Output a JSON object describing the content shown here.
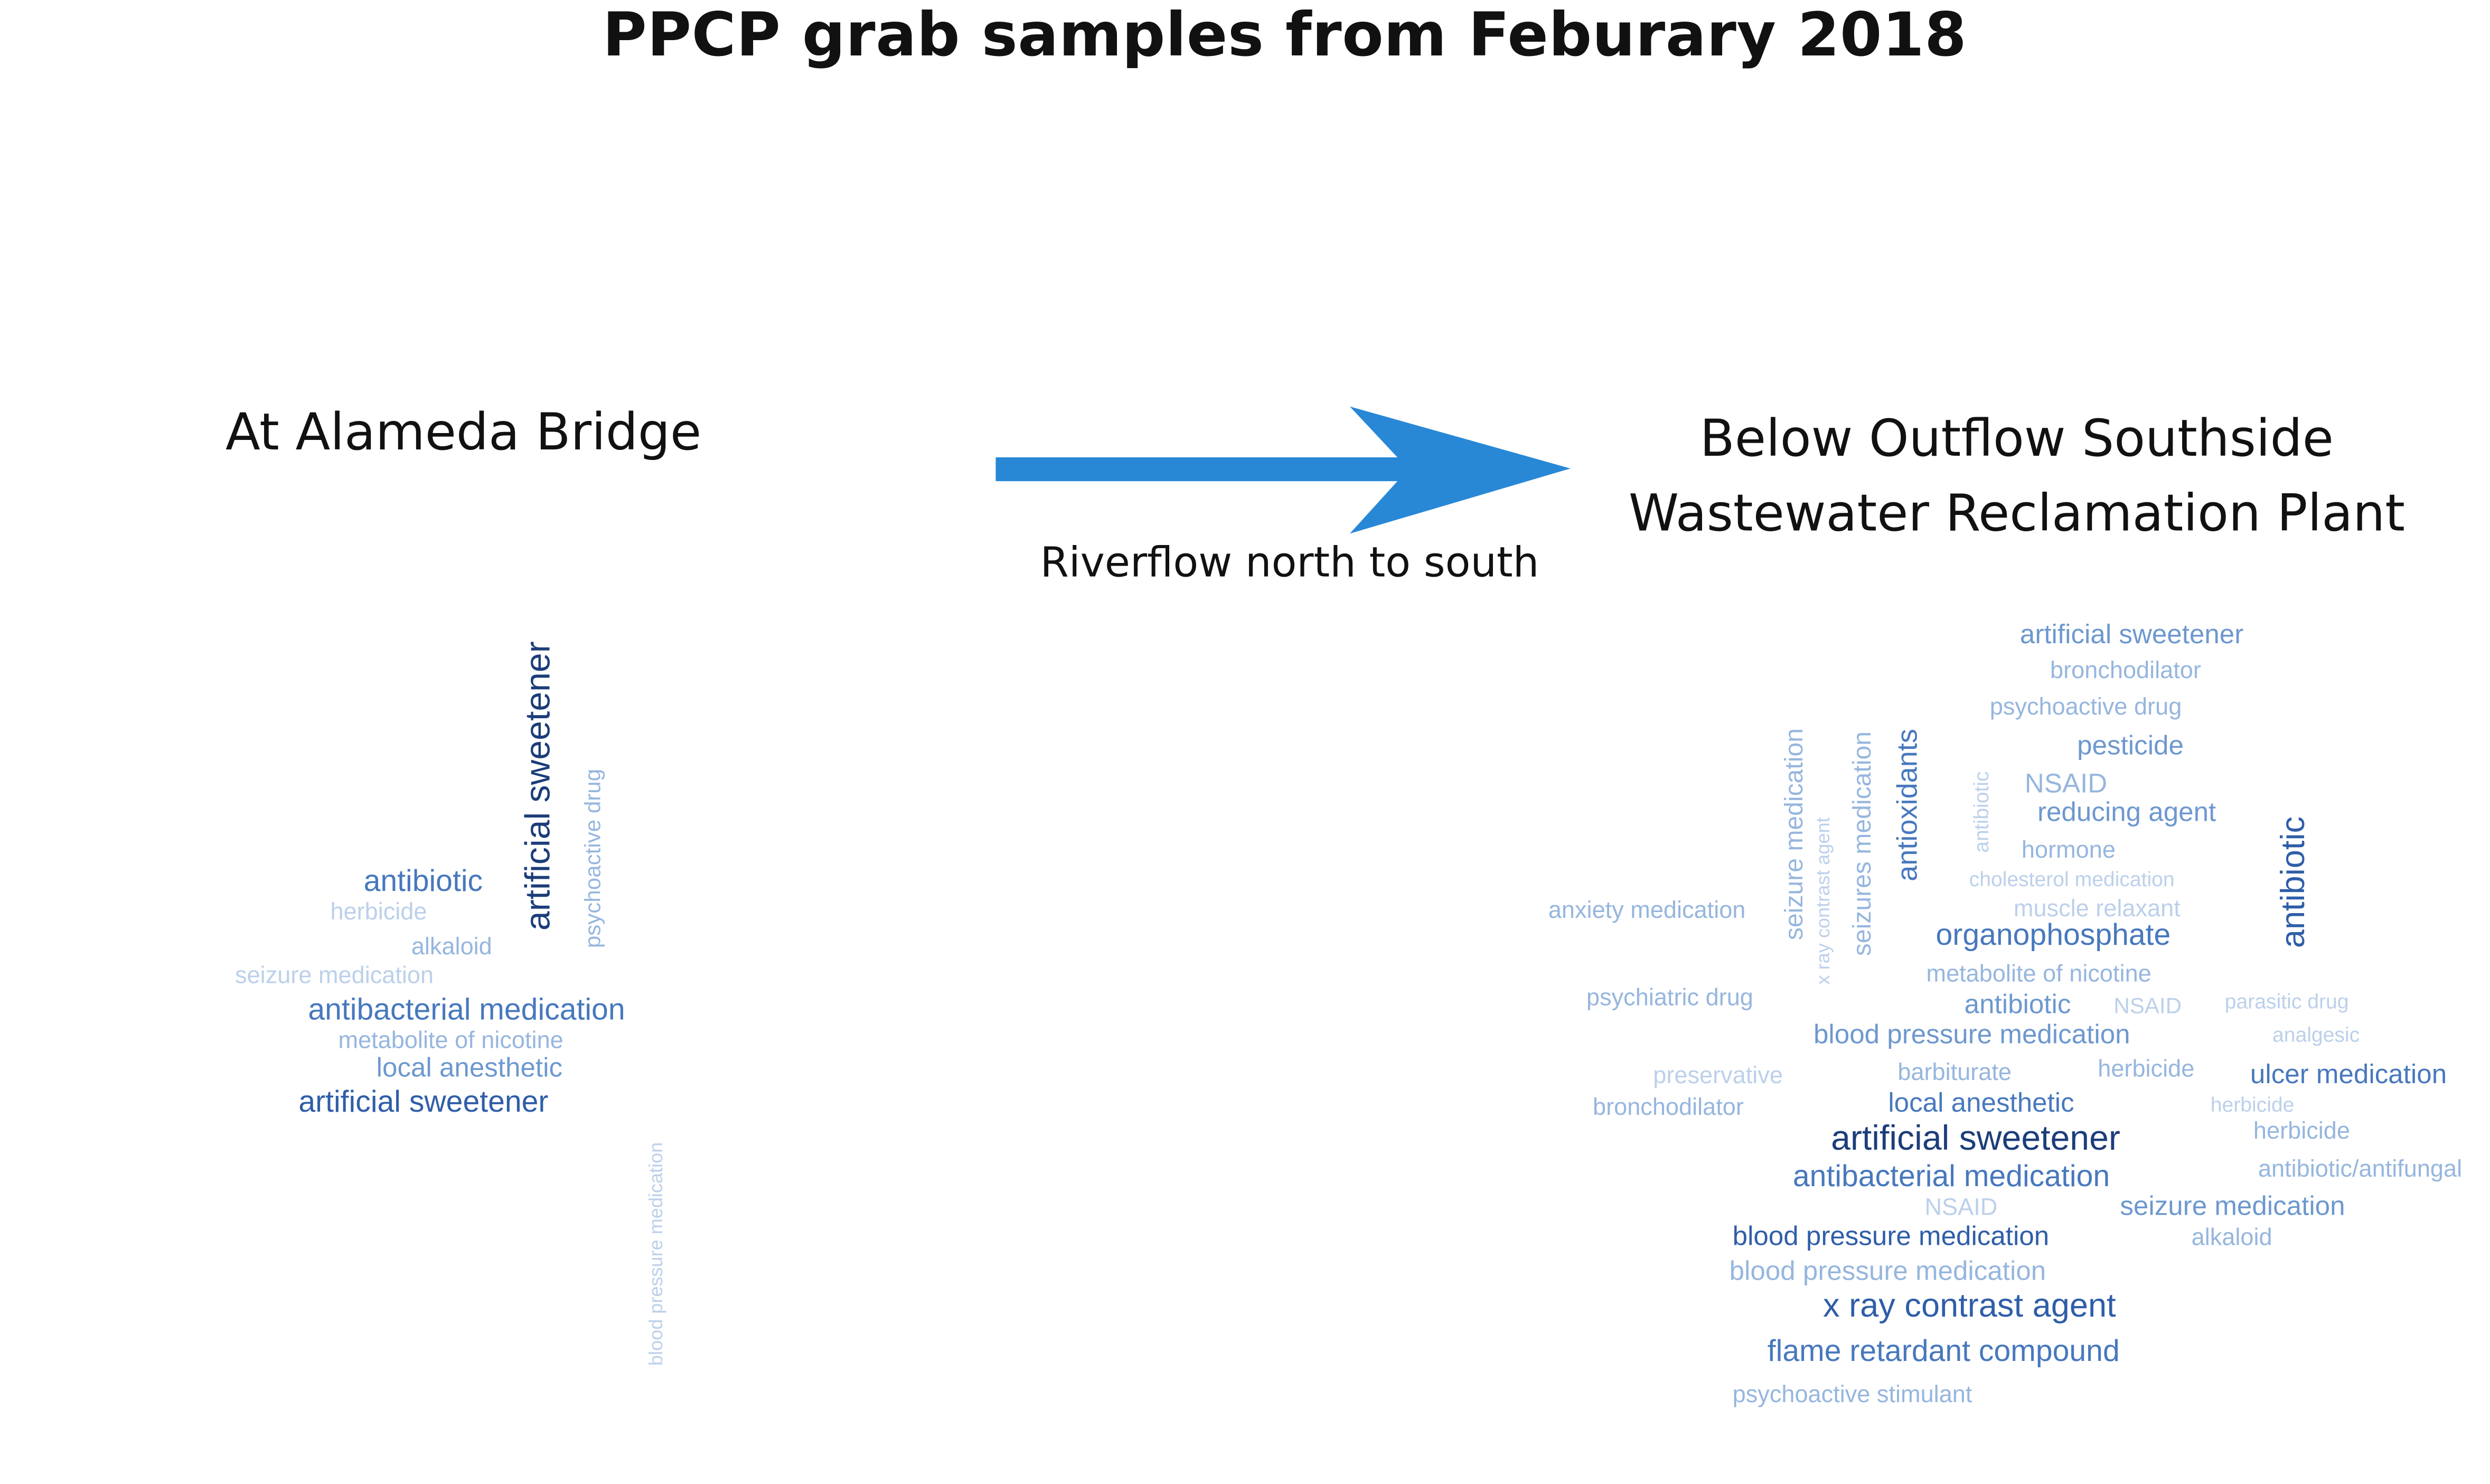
{
  "title": "PPCP grab samples from Feburary 2018",
  "upstream_site": {
    "label": "At Alameda Bridge"
  },
  "downstream_site": {
    "label_line1": "Below Outflow Southside",
    "label_line2": "Wastewater Reclamation Plant"
  },
  "flow": {
    "label": "Riverflow north to south",
    "arrow_color": "#2888d6"
  },
  "colors": {
    "darkest": "#1c3d7a",
    "dark": "#2f5ea8",
    "medium": "#4778bd",
    "light": "#6d98cf",
    "lighter": "#96b6de",
    "lightest": "#bcd0ea"
  },
  "wordcloud_upstream": [
    "artificial sweetener",
    "psychoactive drug",
    "antibiotic",
    "herbicide",
    "alkaloid",
    "seizure medication",
    "antibacterial medication",
    "metabolite of nicotine",
    "local anesthetic",
    "artificial sweetener",
    "blood pressure medication"
  ],
  "wordcloud_downstream": [
    "artificial sweetener",
    "bronchodilator",
    "psychoactive drug",
    "pesticide",
    "NSAID",
    "reducing agent",
    "hormone",
    "cholesterol medication",
    "muscle relaxant",
    "seizure medication",
    "x ray contrast agent",
    "seizures medication",
    "antioxidants",
    "antibiotic",
    "antibiotic",
    "anxiety medication",
    "organophosphate",
    "metabolite of nicotine",
    "psychiatric drug",
    "antibiotic",
    "NSAID",
    "parasitic drug",
    "blood pressure medication",
    "analgesic",
    "preservative",
    "barbiturate",
    "herbicide",
    "ulcer medication",
    "bronchodilator",
    "local anesthetic",
    "herbicide",
    "herbicide",
    "artificial sweetener",
    "antibacterial medication",
    "antibiotic/antifungal",
    "NSAID",
    "seizure medication",
    "blood pressure medication",
    "alkaloid",
    "blood pressure medication",
    "x ray contrast agent",
    "flame retardant compound",
    "psychoactive stimulant"
  ]
}
